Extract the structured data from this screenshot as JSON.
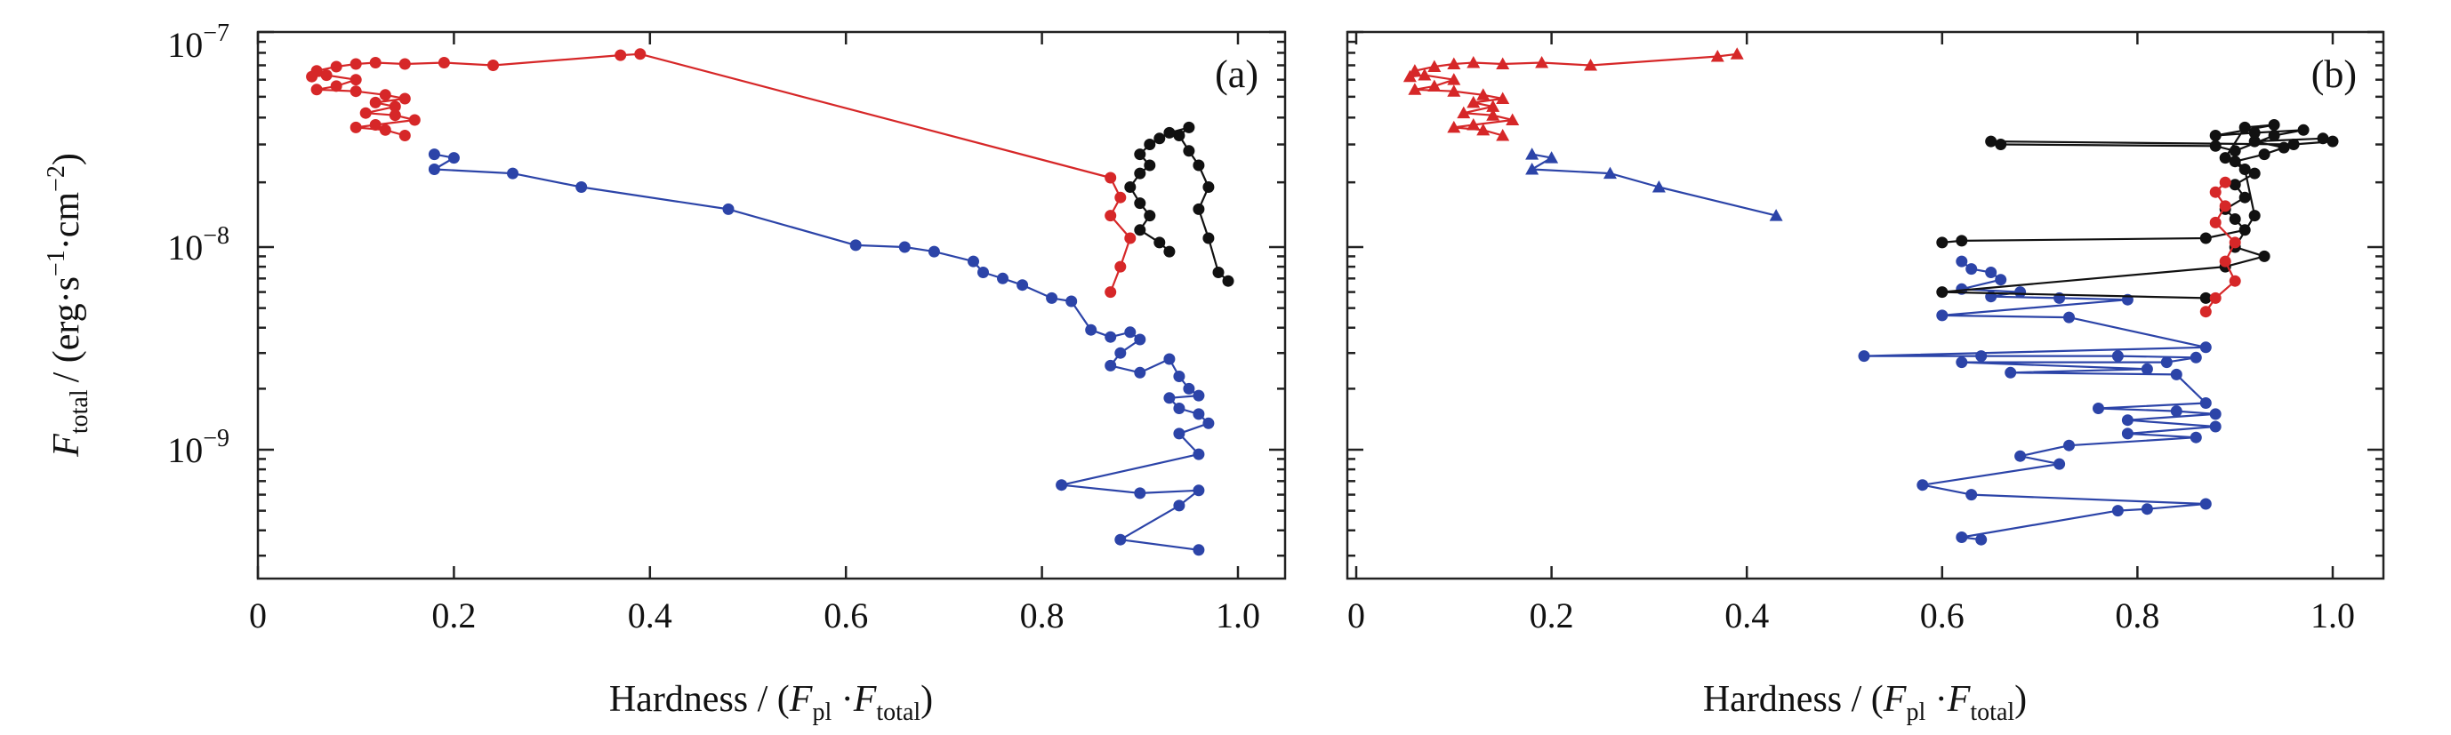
{
  "colors": {
    "red": "#d62728",
    "blue": "#2c44a8",
    "black": "#111111"
  },
  "labels": {
    "ylabel_main": "F",
    "ylabel_sub": "total",
    "ylabel_units": "/ (erg·s",
    "ylabel_exp1": "−1",
    "ylabel_mid": "·cm",
    "ylabel_exp2": "−2",
    "ylabel_close": ")",
    "xlabel_text": "Hardness / (",
    "xlabel_f1": "F",
    "xlabel_s1": "pl",
    "xlabel_dot": " ·",
    "xlabel_f2": "F",
    "xlabel_s2": "total",
    "xlabel_close": ")",
    "ytick_base": "10",
    "yticks": [
      {
        "exp": "−7"
      },
      {
        "exp": "−8"
      },
      {
        "exp": "−9"
      }
    ],
    "xticks": [
      "0",
      "0.2",
      "0.4",
      "0.6",
      "0.8",
      "1.0"
    ]
  },
  "chart_data": [
    {
      "type": "line",
      "panel_label": "(a)",
      "xlabel": "Hardness / (Fpl·Ftotal)",
      "ylabel": "Ftotal / (erg·s−1·cm−2)",
      "xlim": [
        0,
        1.05
      ],
      "ylim": [
        2.4e-10,
        1e-07
      ],
      "yscale": "log",
      "series": [
        {
          "color": "red",
          "marker": "circle",
          "points": [
            [
              0.87,
              6e-09
            ],
            [
              0.88,
              8e-09
            ],
            [
              0.89,
              1.1e-08
            ],
            [
              0.87,
              1.4e-08
            ],
            [
              0.88,
              1.7e-08
            ],
            [
              0.87,
              2.1e-08
            ],
            [
              0.39,
              7.9e-08
            ],
            [
              0.37,
              7.8e-08
            ],
            [
              0.24,
              7e-08
            ],
            [
              0.19,
              7.2e-08
            ],
            [
              0.15,
              7.1e-08
            ],
            [
              0.12,
              7.2e-08
            ],
            [
              0.1,
              7.1e-08
            ],
            [
              0.08,
              6.9e-08
            ],
            [
              0.06,
              6.6e-08
            ],
            [
              0.055,
              6.2e-08
            ],
            [
              0.07,
              6.3e-08
            ],
            [
              0.1,
              6e-08
            ],
            [
              0.08,
              5.6e-08
            ],
            [
              0.06,
              5.4e-08
            ],
            [
              0.1,
              5.3e-08
            ],
            [
              0.13,
              5.1e-08
            ],
            [
              0.15,
              4.9e-08
            ],
            [
              0.12,
              4.7e-08
            ],
            [
              0.14,
              4.5e-08
            ],
            [
              0.11,
              4.2e-08
            ],
            [
              0.14,
              4.1e-08
            ],
            [
              0.16,
              3.9e-08
            ],
            [
              0.12,
              3.7e-08
            ],
            [
              0.1,
              3.6e-08
            ],
            [
              0.13,
              3.5e-08
            ],
            [
              0.15,
              3.3e-08
            ]
          ]
        },
        {
          "color": "blue",
          "marker": "circle",
          "points": [
            [
              0.18,
              2.7e-08
            ],
            [
              0.2,
              2.6e-08
            ],
            [
              0.18,
              2.3e-08
            ],
            [
              0.26,
              2.2e-08
            ],
            [
              0.33,
              1.9e-08
            ],
            [
              0.48,
              1.5e-08
            ],
            [
              0.61,
              1.02e-08
            ],
            [
              0.66,
              1e-08
            ],
            [
              0.69,
              9.5e-09
            ],
            [
              0.73,
              8.5e-09
            ],
            [
              0.74,
              7.5e-09
            ],
            [
              0.76,
              7e-09
            ],
            [
              0.78,
              6.5e-09
            ],
            [
              0.81,
              5.6e-09
            ],
            [
              0.83,
              5.4e-09
            ],
            [
              0.85,
              3.9e-09
            ],
            [
              0.87,
              3.6e-09
            ],
            [
              0.89,
              3.8e-09
            ],
            [
              0.9,
              3.5e-09
            ],
            [
              0.88,
              3e-09
            ],
            [
              0.87,
              2.6e-09
            ],
            [
              0.9,
              2.4e-09
            ],
            [
              0.93,
              2.8e-09
            ],
            [
              0.94,
              2.3e-09
            ],
            [
              0.95,
              2e-09
            ],
            [
              0.96,
              1.85e-09
            ],
            [
              0.93,
              1.8e-09
            ],
            [
              0.94,
              1.6e-09
            ],
            [
              0.96,
              1.5e-09
            ],
            [
              0.97,
              1.35e-09
            ],
            [
              0.94,
              1.2e-09
            ],
            [
              0.96,
              9.5e-10
            ],
            [
              0.82,
              6.7e-10
            ],
            [
              0.9,
              6.1e-10
            ],
            [
              0.96,
              6.3e-10
            ],
            [
              0.94,
              5.3e-10
            ],
            [
              0.88,
              3.6e-10
            ],
            [
              0.96,
              3.2e-10
            ]
          ]
        },
        {
          "color": "black",
          "marker": "circle",
          "points": [
            [
              0.99,
              6.8e-09
            ],
            [
              0.98,
              7.5e-09
            ],
            [
              0.97,
              1.1e-08
            ],
            [
              0.96,
              1.5e-08
            ],
            [
              0.97,
              1.9e-08
            ],
            [
              0.96,
              2.4e-08
            ],
            [
              0.95,
              2.8e-08
            ],
            [
              0.94,
              3.3e-08
            ],
            [
              0.95,
              3.6e-08
            ],
            [
              0.93,
              3.4e-08
            ],
            [
              0.92,
              3.2e-08
            ],
            [
              0.91,
              3e-08
            ],
            [
              0.9,
              2.7e-08
            ],
            [
              0.91,
              2.4e-08
            ],
            [
              0.9,
              2.2e-08
            ],
            [
              0.89,
              1.9e-08
            ],
            [
              0.9,
              1.6e-08
            ],
            [
              0.91,
              1.4e-08
            ],
            [
              0.9,
              1.2e-08
            ],
            [
              0.92,
              1.05e-08
            ],
            [
              0.93,
              9.5e-09
            ]
          ]
        }
      ]
    },
    {
      "type": "line",
      "panel_label": "(b)",
      "xlabel": "Hardness / (Fpl·Ftotal)",
      "xlim": [
        0,
        1.05
      ],
      "ylim": [
        2.4e-10,
        1e-07
      ],
      "yscale": "log",
      "series": [
        {
          "color": "red",
          "marker": "triangle",
          "points": [
            [
              0.39,
              7.9e-08
            ],
            [
              0.37,
              7.7e-08
            ],
            [
              0.24,
              7e-08
            ],
            [
              0.19,
              7.2e-08
            ],
            [
              0.15,
              7.1e-08
            ],
            [
              0.12,
              7.2e-08
            ],
            [
              0.1,
              7.1e-08
            ],
            [
              0.08,
              6.9e-08
            ],
            [
              0.06,
              6.6e-08
            ],
            [
              0.055,
              6.2e-08
            ],
            [
              0.07,
              6.3e-08
            ],
            [
              0.1,
              6e-08
            ],
            [
              0.08,
              5.6e-08
            ],
            [
              0.06,
              5.4e-08
            ],
            [
              0.1,
              5.3e-08
            ],
            [
              0.13,
              5.1e-08
            ],
            [
              0.15,
              4.9e-08
            ],
            [
              0.12,
              4.7e-08
            ],
            [
              0.14,
              4.5e-08
            ],
            [
              0.11,
              4.2e-08
            ],
            [
              0.14,
              4.1e-08
            ],
            [
              0.16,
              3.9e-08
            ],
            [
              0.12,
              3.7e-08
            ],
            [
              0.1,
              3.6e-08
            ],
            [
              0.13,
              3.5e-08
            ],
            [
              0.15,
              3.3e-08
            ]
          ]
        },
        {
          "color": "blue",
          "marker": "triangle",
          "points": [
            [
              0.18,
              2.7e-08
            ],
            [
              0.2,
              2.6e-08
            ],
            [
              0.18,
              2.3e-08
            ],
            [
              0.26,
              2.2e-08
            ],
            [
              0.31,
              1.9e-08
            ],
            [
              0.43,
              1.4e-08
            ]
          ]
        },
        {
          "color": "blue",
          "marker": "circle",
          "points": [
            [
              0.62,
              8.5e-09
            ],
            [
              0.63,
              7.8e-09
            ],
            [
              0.65,
              7.5e-09
            ],
            [
              0.66,
              6.9e-09
            ],
            [
              0.62,
              6.2e-09
            ],
            [
              0.68,
              6e-09
            ],
            [
              0.65,
              5.7e-09
            ],
            [
              0.72,
              5.6e-09
            ],
            [
              0.79,
              5.5e-09
            ],
            [
              0.6,
              4.6e-09
            ],
            [
              0.73,
              4.5e-09
            ],
            [
              0.87,
              3.2e-09
            ],
            [
              0.52,
              2.9e-09
            ],
            [
              0.64,
              2.9e-09
            ],
            [
              0.78,
              2.9e-09
            ],
            [
              0.86,
              2.85e-09
            ],
            [
              0.83,
              2.7e-09
            ],
            [
              0.62,
              2.7e-09
            ],
            [
              0.81,
              2.5e-09
            ],
            [
              0.67,
              2.4e-09
            ],
            [
              0.84,
              2.35e-09
            ],
            [
              0.87,
              1.7e-09
            ],
            [
              0.76,
              1.6e-09
            ],
            [
              0.84,
              1.55e-09
            ],
            [
              0.88,
              1.5e-09
            ],
            [
              0.79,
              1.4e-09
            ],
            [
              0.88,
              1.3e-09
            ],
            [
              0.79,
              1.2e-09
            ],
            [
              0.86,
              1.15e-09
            ],
            [
              0.73,
              1.05e-09
            ],
            [
              0.68,
              9.3e-10
            ],
            [
              0.72,
              8.5e-10
            ],
            [
              0.58,
              6.7e-10
            ],
            [
              0.63,
              6e-10
            ],
            [
              0.87,
              5.4e-10
            ],
            [
              0.81,
              5.1e-10
            ],
            [
              0.78,
              5e-10
            ],
            [
              0.62,
              3.7e-10
            ],
            [
              0.64,
              3.6e-10
            ]
          ]
        },
        {
          "color": "black",
          "marker": "circle",
          "points": [
            [
              0.6,
              1.05e-08
            ],
            [
              0.62,
              1.07e-08
            ],
            [
              0.87,
              1.1e-08
            ],
            [
              0.91,
              1.2e-08
            ],
            [
              0.9,
              1.35e-08
            ],
            [
              0.89,
              1.5e-08
            ],
            [
              0.91,
              1.7e-08
            ],
            [
              0.9,
              1.95e-08
            ],
            [
              0.92,
              2.2e-08
            ],
            [
              0.9,
              2.5e-08
            ],
            [
              0.93,
              2.7e-08
            ],
            [
              0.95,
              2.9e-08
            ],
            [
              0.92,
              3.1e-08
            ],
            [
              0.99,
              3.2e-08
            ],
            [
              1.0,
              3.1e-08
            ],
            [
              0.96,
              3e-08
            ],
            [
              0.65,
              3.1e-08
            ],
            [
              0.66,
              3e-08
            ],
            [
              0.88,
              2.95e-08
            ],
            [
              0.9,
              2.8e-08
            ],
            [
              0.94,
              3.3e-08
            ],
            [
              0.97,
              3.5e-08
            ],
            [
              0.92,
              3.4e-08
            ],
            [
              0.88,
              3.3e-08
            ],
            [
              0.94,
              3.7e-08
            ],
            [
              0.91,
              3.6e-08
            ],
            [
              0.89,
              2.6e-08
            ],
            [
              0.91,
              2.3e-08
            ],
            [
              0.92,
              1.4e-08
            ],
            [
              0.9,
              1e-08
            ],
            [
              0.93,
              9e-09
            ],
            [
              0.89,
              8e-09
            ],
            [
              0.6,
              6e-09
            ],
            [
              0.87,
              5.6e-09
            ]
          ]
        },
        {
          "color": "red",
          "marker": "circle",
          "points": [
            [
              0.87,
              4.8e-09
            ],
            [
              0.88,
              5.6e-09
            ],
            [
              0.9,
              6.8e-09
            ],
            [
              0.89,
              8.5e-09
            ],
            [
              0.9,
              1.05e-08
            ],
            [
              0.88,
              1.3e-08
            ],
            [
              0.89,
              1.55e-08
            ],
            [
              0.88,
              1.8e-08
            ],
            [
              0.89,
              2e-08
            ]
          ]
        }
      ]
    }
  ]
}
